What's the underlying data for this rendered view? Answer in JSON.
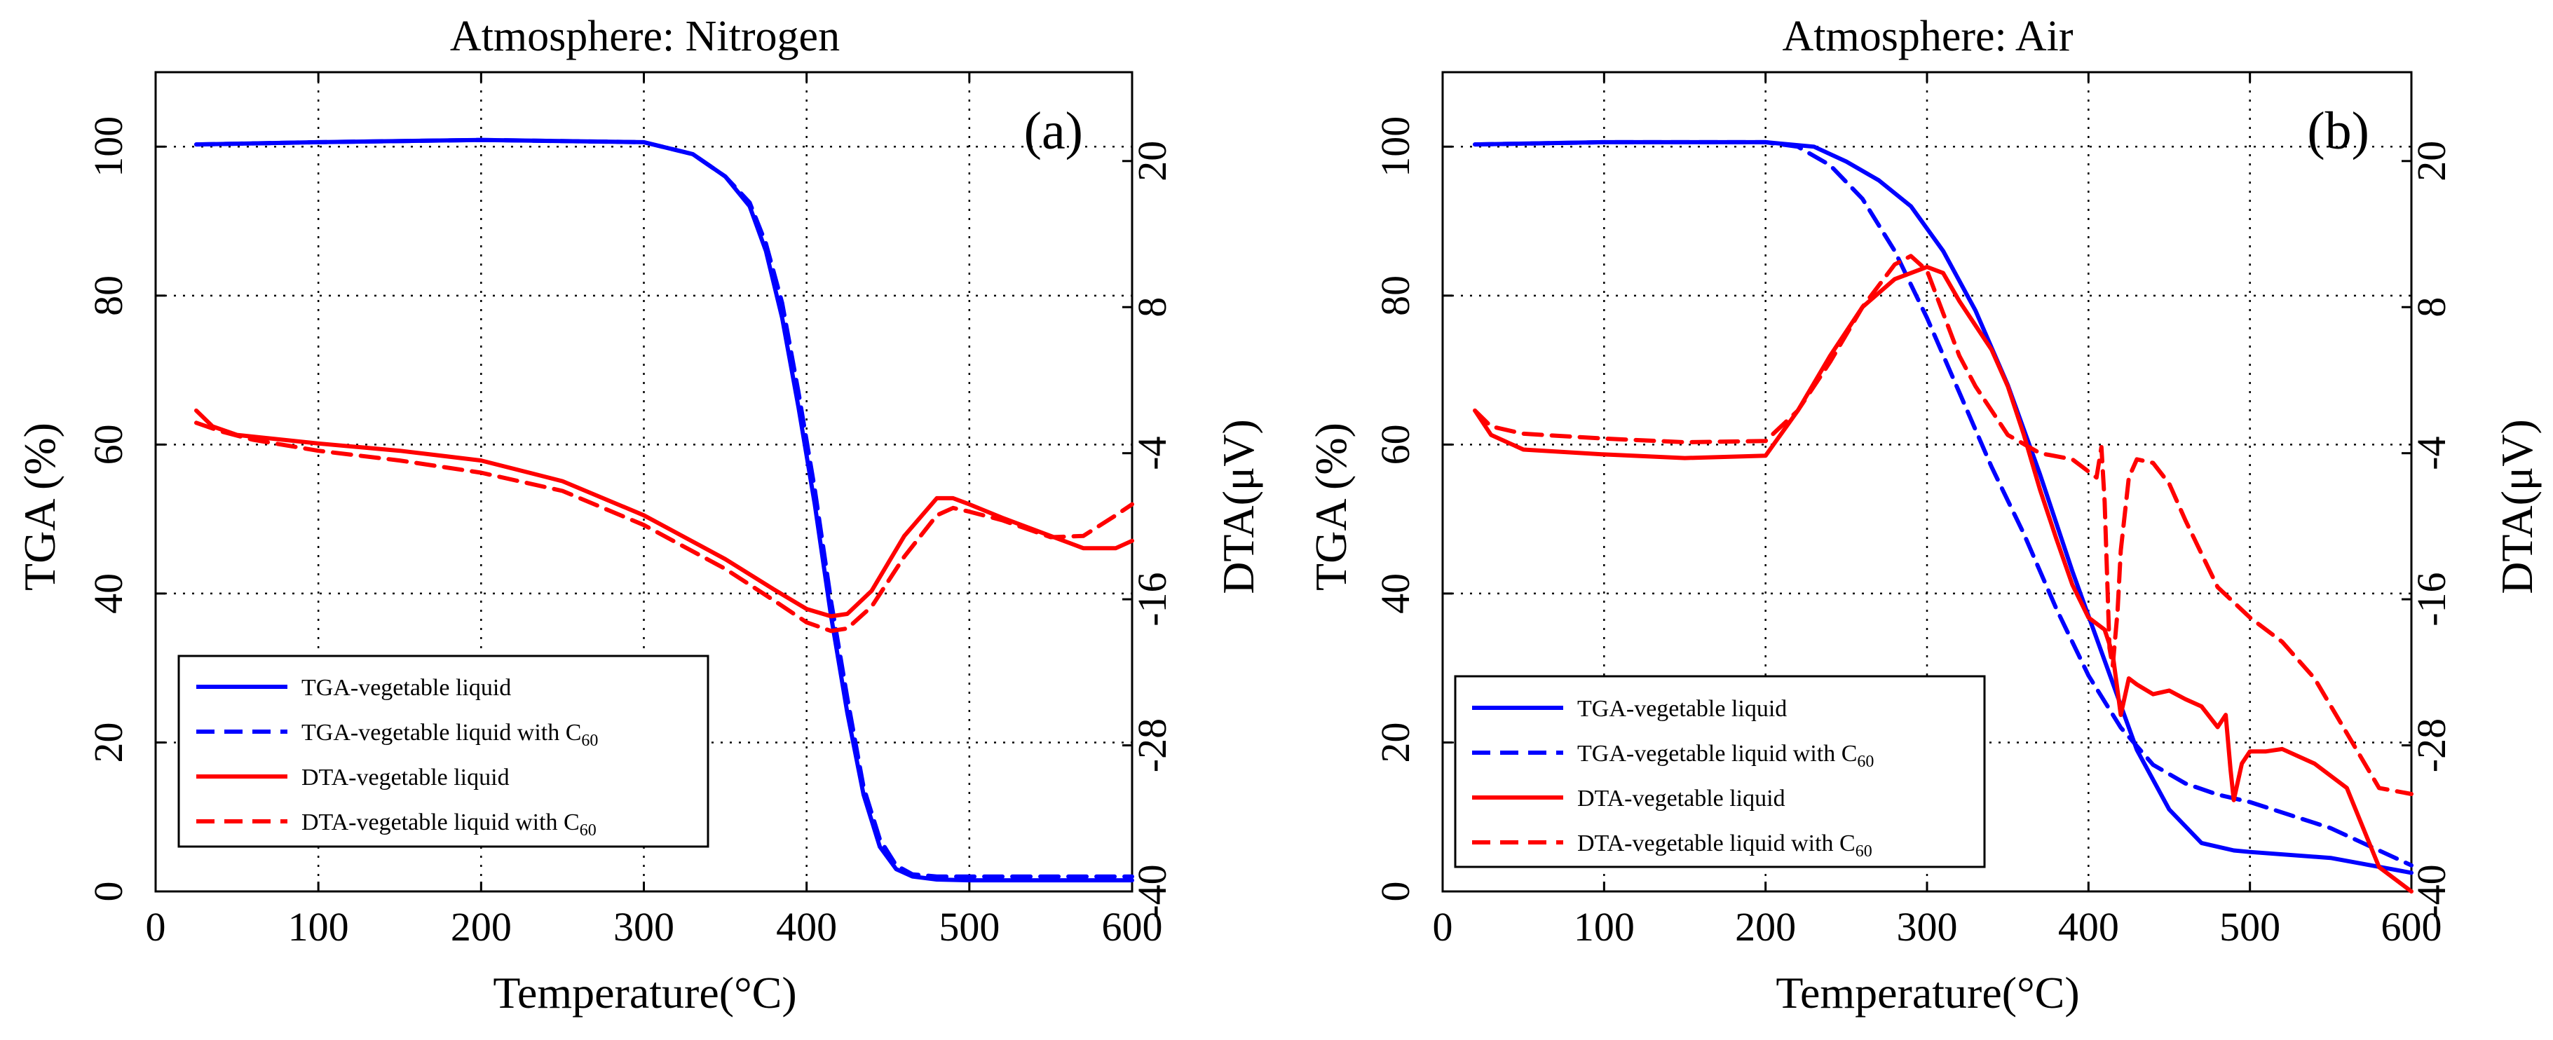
{
  "colors": {
    "tga": "#0000ff",
    "dta": "#ff0000"
  },
  "chart_data": [
    {
      "type": "line",
      "panel_label": "(a)",
      "title": "Atmosphere: Nitrogen",
      "xlabel": "Temperature(°C)",
      "ylabel": "TGA (%)",
      "y2label": "DTA(μV)",
      "xlim": [
        0,
        600
      ],
      "ylim": [
        0,
        110
      ],
      "y2lim": [
        -40,
        27.3
      ],
      "x_ticks": [
        "0",
        "100",
        "200",
        "300",
        "400",
        "500",
        "600"
      ],
      "y_ticks": [
        "0",
        "20",
        "40",
        "60",
        "80",
        "100"
      ],
      "y2_ticks": [
        "20",
        "8",
        "-4",
        "-16",
        "-28",
        "-40"
      ],
      "grid": true,
      "legend_position": "bottom-left",
      "series": [
        {
          "name": "TGA-vegetable liquid",
          "name_main": "TGA-vegetable liquid",
          "name_sub": "",
          "axis": "left",
          "style": "solid",
          "color": "#0000ff",
          "x": [
            25,
            100,
            200,
            300,
            330,
            350,
            365,
            375,
            385,
            395,
            405,
            415,
            425,
            435,
            445,
            455,
            465,
            480,
            500,
            600
          ],
          "y": [
            100.3,
            100.6,
            100.9,
            100.6,
            99,
            96,
            92,
            86,
            77,
            65,
            52,
            37,
            24,
            13,
            6,
            3,
            2,
            1.6,
            1.5,
            1.5
          ]
        },
        {
          "name": "TGA-vegetable liquid with C60",
          "name_main": "TGA-vegetable liquid with C",
          "name_sub": "60",
          "axis": "left",
          "style": "dashed",
          "color": "#0000ff",
          "x": [
            25,
            100,
            200,
            300,
            330,
            350,
            365,
            375,
            385,
            395,
            405,
            415,
            425,
            435,
            445,
            455,
            465,
            480,
            500,
            600
          ],
          "y": [
            100.3,
            100.6,
            100.9,
            100.6,
            99,
            96,
            92.5,
            87,
            79,
            67,
            54,
            39,
            26,
            14,
            7,
            3.5,
            2.3,
            2,
            2,
            2
          ]
        },
        {
          "name": "DTA-vegetable liquid",
          "name_main": "DTA-vegetable liquid",
          "name_sub": "",
          "axis": "right",
          "style": "solid",
          "color": "#ff0000",
          "x": [
            25,
            35,
            50,
            100,
            150,
            200,
            250,
            300,
            350,
            380,
            400,
            415,
            425,
            440,
            460,
            480,
            490,
            500,
            520,
            550,
            570,
            590,
            600
          ],
          "y": [
            -0.5,
            -1.8,
            -2.5,
            -3.2,
            -3.8,
            -4.6,
            -6.3,
            -9.1,
            -12.7,
            -15.2,
            -16.8,
            -17.4,
            -17.2,
            -15.3,
            -10.8,
            -7.7,
            -7.7,
            -8.2,
            -9.3,
            -10.8,
            -11.8,
            -11.8,
            -11.2
          ]
        },
        {
          "name": "DTA-vegetable liquid with C60",
          "name_main": "DTA-vegetable liquid with C",
          "name_sub": "60",
          "axis": "right",
          "style": "dashed",
          "color": "#ff0000",
          "x": [
            25,
            40,
            60,
            100,
            150,
            200,
            250,
            300,
            350,
            380,
            400,
            415,
            425,
            440,
            460,
            480,
            490,
            500,
            520,
            550,
            570,
            590,
            600
          ],
          "y": [
            -1.5,
            -2.2,
            -2.9,
            -3.8,
            -4.6,
            -5.6,
            -7.1,
            -9.9,
            -13.5,
            -16.1,
            -17.9,
            -18.6,
            -18.4,
            -16.6,
            -12.5,
            -9.1,
            -8.5,
            -8.8,
            -9.5,
            -10.9,
            -10.8,
            -9.1,
            -8.2
          ]
        }
      ]
    },
    {
      "type": "line",
      "panel_label": "(b)",
      "title": "Atmosphere: Air",
      "xlabel": "Temperature(°C)",
      "ylabel": "TGA (%)",
      "y2label": "DTA(μV)",
      "xlim": [
        0,
        600
      ],
      "ylim": [
        0,
        110
      ],
      "y2lim": [
        -40,
        27.3
      ],
      "x_ticks": [
        "0",
        "100",
        "200",
        "300",
        "400",
        "500",
        "600"
      ],
      "y_ticks": [
        "0",
        "20",
        "40",
        "60",
        "80",
        "100"
      ],
      "y2_ticks": [
        "20",
        "8",
        "-4",
        "-16",
        "-28",
        "-40"
      ],
      "grid": true,
      "legend_position": "bottom-left",
      "series": [
        {
          "name": "TGA-vegetable liquid",
          "name_main": "TGA-vegetable liquid",
          "name_sub": "",
          "axis": "left",
          "style": "solid",
          "color": "#0000ff",
          "x": [
            20,
            100,
            200,
            230,
            250,
            270,
            290,
            310,
            330,
            350,
            370,
            390,
            410,
            430,
            450,
            470,
            490,
            500,
            550,
            600
          ],
          "y": [
            100.3,
            100.6,
            100.6,
            100,
            98,
            95.5,
            92,
            86,
            78,
            68,
            56,
            43,
            31,
            19,
            11,
            6.5,
            5.5,
            5.3,
            4.5,
            2.5
          ]
        },
        {
          "name": "TGA-vegetable liquid with C60",
          "name_main": "TGA-vegetable liquid with C",
          "name_sub": "60",
          "axis": "left",
          "style": "dashed",
          "color": "#0000ff",
          "x": [
            20,
            100,
            200,
            220,
            240,
            260,
            280,
            300,
            320,
            340,
            360,
            380,
            400,
            420,
            440,
            460,
            480,
            500,
            550,
            600
          ],
          "y": [
            100.3,
            100.6,
            100.6,
            100,
            97.5,
            93,
            86,
            77,
            67,
            57,
            48,
            38,
            29,
            22,
            17,
            14.5,
            13,
            12,
            8.5,
            3.5
          ]
        },
        {
          "name": "DTA-vegetable liquid",
          "name_main": "DTA-vegetable liquid",
          "name_sub": "",
          "axis": "right",
          "style": "solid",
          "color": "#ff0000",
          "x": [
            20,
            30,
            50,
            100,
            150,
            200,
            220,
            240,
            260,
            280,
            300,
            310,
            320,
            330,
            340,
            350,
            360,
            370,
            380,
            390,
            400,
            410,
            415,
            420,
            425,
            430,
            440,
            450,
            460,
            470,
            480,
            485,
            488,
            490,
            495,
            500,
            510,
            520,
            540,
            560,
            580,
            600
          ],
          "y": [
            -0.5,
            -2.5,
            -3.7,
            -4.1,
            -4.4,
            -4.2,
            -0.5,
            4,
            8,
            10.3,
            11.3,
            10.8,
            8.5,
            6.5,
            4.5,
            1.5,
            -2.5,
            -7,
            -11,
            -14.8,
            -17.5,
            -18.5,
            -20.5,
            -25.5,
            -22.5,
            -23,
            -23.8,
            -23.5,
            -24.2,
            -24.8,
            -26.5,
            -25.5,
            -30,
            -32.5,
            -29.5,
            -28.5,
            -28.5,
            -28.3,
            -29.5,
            -31.5,
            -38,
            -40
          ]
        },
        {
          "name": "DTA-vegetable liquid with C60",
          "name_main": "DTA-vegetable liquid with C",
          "name_sub": "60",
          "axis": "right",
          "style": "dashed",
          "color": "#ff0000",
          "x": [
            20,
            30,
            50,
            100,
            150,
            200,
            220,
            240,
            260,
            280,
            290,
            300,
            310,
            320,
            330,
            350,
            370,
            390,
            405,
            408,
            410,
            413,
            415,
            418,
            420,
            425,
            430,
            440,
            450,
            460,
            480,
            500,
            520,
            540,
            560,
            580,
            600
          ],
          "y": [
            -0.5,
            -1.8,
            -2.4,
            -2.8,
            -3.1,
            -3,
            -0.5,
            3.5,
            8,
            11.5,
            12.2,
            11,
            7.5,
            4,
            1.5,
            -2.5,
            -4,
            -4.5,
            -6,
            -3.5,
            -8,
            -20,
            -21.5,
            -17,
            -12,
            -6,
            -4.5,
            -4.8,
            -6.5,
            -9.5,
            -15,
            -17.5,
            -19.5,
            -22.5,
            -27,
            -31.5,
            -32
          ]
        }
      ]
    }
  ]
}
